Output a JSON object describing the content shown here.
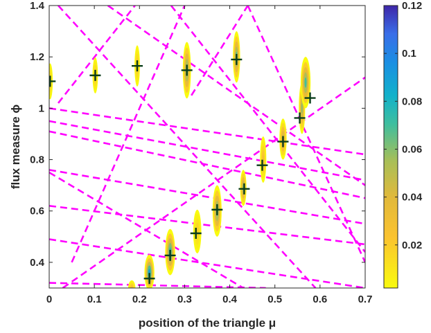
{
  "chart_data": {
    "type": "scatter",
    "xlabel": "position of the triangle μ",
    "ylabel": "flux measure ϕ",
    "xlim": [
      0,
      0.7
    ],
    "ylim": [
      0.3,
      1.4
    ],
    "x_ticks": [
      "0",
      "0.1",
      "0.2",
      "0.3",
      "0.4",
      "0.5",
      "0.6",
      "0.7"
    ],
    "y_ticks": [
      "0.4",
      "0.6",
      "0.8",
      "1",
      "1.2",
      "1.4"
    ],
    "grid": false,
    "colorbar": {
      "min": 0.002,
      "max": 0.12,
      "ticks": [
        "0.02",
        "0.04",
        "0.06",
        "0.08",
        "0.1",
        "0.12"
      ],
      "colormap": "parula-reversed"
    },
    "markers": {
      "style": "plus",
      "color": "#0a3d1a",
      "points": [
        {
          "x": 0.002,
          "y": 1.105
        },
        {
          "x": 0.102,
          "y": 1.128
        },
        {
          "x": 0.195,
          "y": 1.165
        },
        {
          "x": 0.305,
          "y": 1.148
        },
        {
          "x": 0.415,
          "y": 1.19
        },
        {
          "x": 0.222,
          "y": 0.337
        },
        {
          "x": 0.268,
          "y": 0.427
        },
        {
          "x": 0.325,
          "y": 0.513
        },
        {
          "x": 0.372,
          "y": 0.605
        },
        {
          "x": 0.432,
          "y": 0.686
        },
        {
          "x": 0.472,
          "y": 0.778
        },
        {
          "x": 0.518,
          "y": 0.87
        },
        {
          "x": 0.555,
          "y": 0.962
        },
        {
          "x": 0.578,
          "y": 1.04
        }
      ]
    },
    "density_blobs": [
      {
        "x": 0.002,
        "y": 1.105,
        "w": 0.006,
        "h": 0.07,
        "peak": 0.02
      },
      {
        "x": 0.102,
        "y": 1.128,
        "w": 0.006,
        "h": 0.07,
        "peak": 0.025
      },
      {
        "x": 0.195,
        "y": 1.165,
        "w": 0.006,
        "h": 0.08,
        "peak": 0.025
      },
      {
        "x": 0.305,
        "y": 1.148,
        "w": 0.009,
        "h": 0.11,
        "peak": 0.07
      },
      {
        "x": 0.415,
        "y": 1.2,
        "w": 0.008,
        "h": 0.1,
        "peak": 0.07
      },
      {
        "x": 0.183,
        "y": 0.3,
        "w": 0.008,
        "h": 0.03,
        "peak": 0.03
      },
      {
        "x": 0.222,
        "y": 0.36,
        "w": 0.011,
        "h": 0.07,
        "peak": 0.09
      },
      {
        "x": 0.268,
        "y": 0.44,
        "w": 0.011,
        "h": 0.09,
        "peak": 0.08
      },
      {
        "x": 0.328,
        "y": 0.52,
        "w": 0.009,
        "h": 0.085,
        "peak": 0.02
      },
      {
        "x": 0.372,
        "y": 0.6,
        "w": 0.01,
        "h": 0.1,
        "peak": 0.07
      },
      {
        "x": 0.43,
        "y": 0.69,
        "w": 0.007,
        "h": 0.07,
        "peak": 0.06
      },
      {
        "x": 0.474,
        "y": 0.8,
        "w": 0.007,
        "h": 0.09,
        "peak": 0.03
      },
      {
        "x": 0.518,
        "y": 0.88,
        "w": 0.008,
        "h": 0.08,
        "peak": 0.05
      },
      {
        "x": 0.56,
        "y": 1.0,
        "w": 0.007,
        "h": 0.1,
        "peak": 0.06
      },
      {
        "x": 0.568,
        "y": 1.1,
        "w": 0.011,
        "h": 0.1,
        "peak": 0.07
      }
    ],
    "dashed_lines": {
      "color": "#ff00ff",
      "lines": [
        {
          "x": [
            0.0,
            0.7
          ],
          "y": [
            1.0,
            0.82
          ]
        },
        {
          "x": [
            0.0,
            0.7
          ],
          "y": [
            0.95,
            0.72
          ]
        },
        {
          "x": [
            0.0,
            0.7
          ],
          "y": [
            0.91,
            0.65
          ]
        },
        {
          "x": [
            0.0,
            0.7
          ],
          "y": [
            0.76,
            0.55
          ]
        },
        {
          "x": [
            0.0,
            0.7
          ],
          "y": [
            0.62,
            0.47
          ]
        },
        {
          "x": [
            0.0,
            0.7
          ],
          "y": [
            0.49,
            0.3
          ]
        },
        {
          "x": [
            0.0,
            0.48
          ],
          "y": [
            0.32,
            0.3
          ]
        },
        {
          "x": [
            0.0,
            0.43
          ],
          "y": [
            0.75,
            0.3
          ]
        },
        {
          "x": [
            0.03,
            0.7
          ],
          "y": [
            0.3,
            1.12
          ]
        },
        {
          "x": [
            0.02,
            0.19
          ],
          "y": [
            1.02,
            1.4
          ]
        },
        {
          "x": [
            0.05,
            0.3
          ],
          "y": [
            0.4,
            1.4
          ]
        },
        {
          "x": [
            0.13,
            0.7
          ],
          "y": [
            1.4,
            0.7
          ]
        },
        {
          "x": [
            0.27,
            0.7
          ],
          "y": [
            1.4,
            0.44
          ]
        },
        {
          "x": [
            0.02,
            0.59
          ],
          "y": [
            1.4,
            0.3
          ]
        },
        {
          "x": [
            0.315,
            0.44
          ],
          "y": [
            1.05,
            1.4
          ]
        },
        {
          "x": [
            0.44,
            0.7
          ],
          "y": [
            1.4,
            0.4
          ]
        }
      ]
    }
  }
}
